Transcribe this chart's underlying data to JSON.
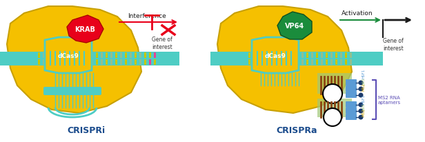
{
  "bg_color": "#ffffff",
  "title_left": "CRISPRi",
  "title_right": "CRISPRa",
  "title_color": "#1a4b8c",
  "title_fontsize": 9,
  "dcas9_color": "#f5c000",
  "dcas9_edge_color": "#c8a000",
  "dna_stripe_cyan": "#4ecdc4",
  "dna_stripe_pink": "#e84393",
  "dna_stripe_yellow": "#c8c800",
  "guide_rna_color": "#4ecdc4",
  "krab_color": "#e8001a",
  "krab_text": "KRAB",
  "vp64_color": "#1a8c3c",
  "vp64_text": "VP64",
  "interference_color": "#e8001a",
  "activation_color": "#1a8c3c",
  "arrow_color": "#1a1a1a",
  "gene_text_color": "#333333",
  "ms2_color": "#5b9bd5",
  "ms2_dark": "#1a3a6b",
  "aptamer_color": "#a0c878",
  "hairpin_color": "#8b4513",
  "label_colors": [
    "#a0c878",
    "#5b9bd5",
    "#8b4513"
  ],
  "ms2_label": "MS2 RNA\naptamers",
  "ms2_label_color": "#5b4db5"
}
